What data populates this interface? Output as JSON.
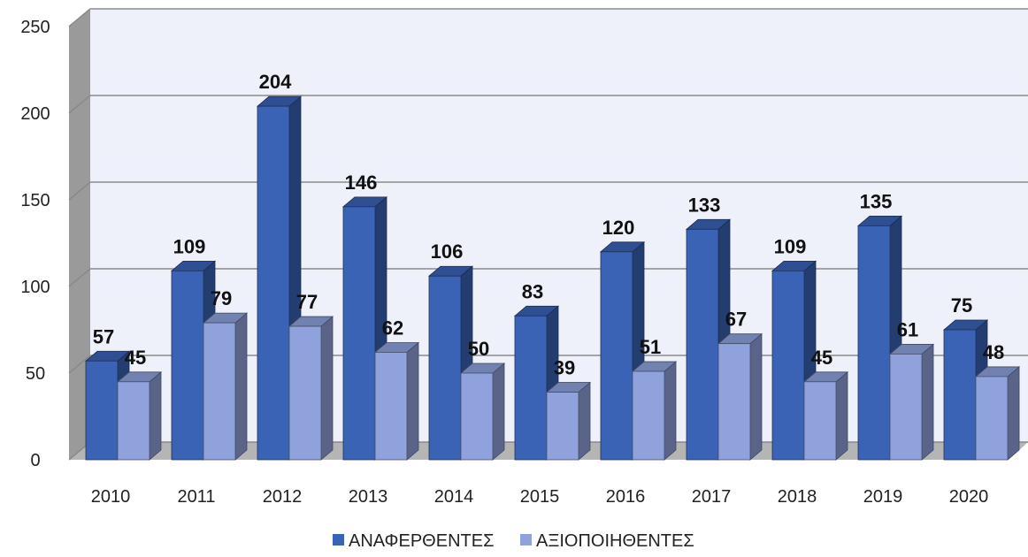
{
  "chart_data": {
    "type": "bar3d",
    "categories": [
      "2010",
      "2011",
      "2012",
      "2013",
      "2014",
      "2015",
      "2016",
      "2017",
      "2018",
      "2019",
      "2020"
    ],
    "series": [
      {
        "name": "ΑΝΑΦΕΡΘΕΝΤΕΣ",
        "color": "#3a63b5",
        "values": [
          57,
          109,
          204,
          146,
          106,
          83,
          120,
          133,
          109,
          135,
          75
        ]
      },
      {
        "name": "ΑΞΙΟΠΟΙΗΘΕΝΤΕΣ",
        "color": "#8fa2dc",
        "values": [
          45,
          79,
          77,
          62,
          50,
          39,
          51,
          67,
          45,
          61,
          48
        ]
      }
    ],
    "ylim": [
      0,
      250
    ],
    "yticks": [
      0,
      50,
      100,
      150,
      200,
      250
    ],
    "grid": true,
    "legend": "bottom"
  }
}
